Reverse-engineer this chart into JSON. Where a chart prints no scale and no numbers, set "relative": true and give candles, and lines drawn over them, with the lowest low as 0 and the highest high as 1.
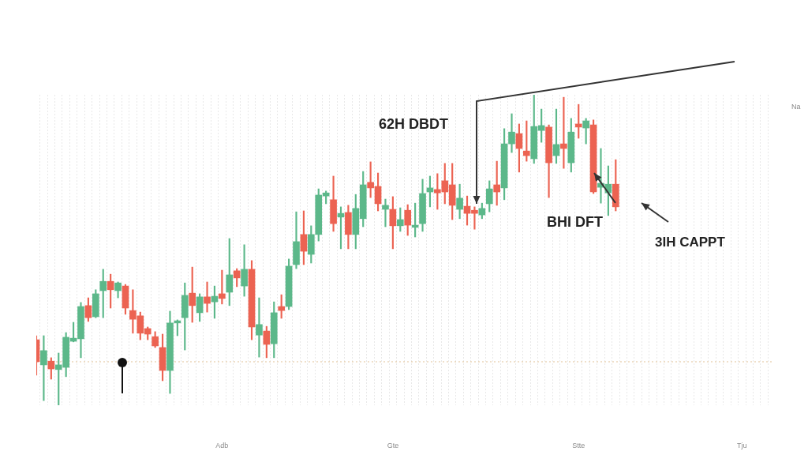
{
  "chart_data": {
    "type": "candlestick",
    "relative": true,
    "grid": "x",
    "annotations": [
      "62H DBDT",
      {
        "text": "BHI DFT",
        "y": 0.748
      },
      "3IH CAPPT",
      "Na"
    ],
    "categories": [
      null,
      null,
      null,
      null,
      null,
      null,
      null,
      null,
      null,
      null,
      null,
      null,
      null,
      null,
      null,
      null,
      null,
      null,
      null,
      null,
      null,
      null,
      null,
      null,
      null,
      "Adb",
      null,
      null,
      null,
      null,
      null,
      null,
      null,
      null,
      null,
      null,
      null,
      null,
      null,
      null,
      null,
      null,
      null,
      null,
      null,
      null,
      null,
      null,
      "Gte",
      null,
      null,
      null,
      null,
      null,
      null,
      null,
      null,
      null,
      null,
      null,
      null,
      null,
      null,
      null,
      null,
      null,
      null,
      null,
      null,
      null,
      null,
      null,
      null,
      "Stte",
      null,
      null,
      null,
      null,
      null,
      null,
      null,
      null,
      null,
      null,
      null,
      null,
      null,
      null,
      null,
      null,
      null,
      null,
      null,
      null,
      null,
      "Tju",
      null,
      null,
      null,
      null
    ],
    "ohlc": [
      [
        0.211,
        0.224,
        0.097,
        0.14
      ],
      [
        0.13,
        0.224,
        0.015,
        0.176
      ],
      [
        0.142,
        0.153,
        0.084,
        0.117
      ],
      [
        0.115,
        0.168,
        0,
        0.13
      ],
      [
        0.122,
        0.234,
        0.092,
        0.219
      ],
      [
        0.206,
        0.267,
        0.204,
        0.216
      ],
      [
        0.214,
        0.331,
        0.153,
        0.318
      ],
      [
        0.321,
        0.346,
        0.27,
        0.282
      ],
      [
        0.285,
        0.372,
        0.282,
        0.359
      ],
      [
        0.369,
        0.438,
        0.282,
        0.399
      ],
      [
        0.399,
        0.422,
        0.313,
        0.372
      ],
      [
        0.369,
        0.397,
        0.346,
        0.394
      ],
      [
        0.384,
        0.389,
        0.293,
        0.313
      ],
      [
        0.305,
        0.372,
        0.232,
        0.277
      ],
      [
        0.288,
        0.3,
        0.211,
        0.232
      ],
      [
        0.247,
        0.252,
        0.211,
        0.229
      ],
      [
        0.221,
        0.237,
        0.186,
        0.191
      ],
      [
        0.186,
        0.229,
        0.079,
        0.112
      ],
      [
        0.112,
        0.303,
        0.038,
        0.265
      ],
      [
        0.265,
        0.275,
        0.224,
        0.272
      ],
      [
        0.282,
        0.394,
        0.178,
        0.354
      ],
      [
        0.361,
        0.445,
        0.267,
        0.321
      ],
      [
        0.298,
        0.359,
        0.27,
        0.349
      ],
      [
        0.349,
        0.397,
        0.3,
        0.328
      ],
      [
        0.333,
        0.384,
        0.28,
        0.351
      ],
      [
        0.359,
        0.435,
        0.326,
        0.344
      ],
      [
        0.364,
        0.537,
        0.321,
        0.42
      ],
      [
        0.433,
        0.44,
        0.382,
        0.41
      ],
      [
        0.384,
        0.517,
        0.351,
        0.438
      ],
      [
        0.438,
        0.466,
        0.211,
        0.252
      ],
      [
        0.226,
        0.346,
        0.155,
        0.26
      ],
      [
        0.239,
        0.254,
        0.153,
        0.196
      ],
      [
        0.198,
        0.333,
        0.153,
        0.298
      ],
      [
        0.318,
        0.356,
        0.28,
        0.305
      ],
      [
        0.318,
        0.471,
        0.308,
        0.448
      ],
      [
        0.453,
        0.623,
        0.44,
        0.527
      ],
      [
        0.55,
        0.626,
        0.453,
        0.496
      ],
      [
        0.486,
        0.578,
        0.458,
        0.55
      ],
      [
        0.55,
        0.697,
        0.529,
        0.677
      ],
      [
        0.674,
        0.69,
        0.649,
        0.684
      ],
      [
        0.662,
        0.738,
        0.56,
        0.585
      ],
      [
        0.606,
        0.639,
        0.504,
        0.618
      ],
      [
        0.621,
        0.644,
        0.504,
        0.55
      ],
      [
        0.55,
        0.679,
        0.504,
        0.634
      ],
      [
        0.601,
        0.753,
        0.575,
        0.71
      ],
      [
        0.718,
        0.784,
        0.669,
        0.7
      ],
      [
        0.705,
        0.748,
        0.626,
        0.649
      ],
      [
        0.631,
        0.664,
        0.575,
        0.644
      ],
      [
        0.631,
        0.672,
        0.504,
        0.578
      ],
      [
        0.578,
        0.636,
        0.56,
        0.598
      ],
      [
        0.628,
        0.646,
        0.547,
        0.58
      ],
      [
        0.573,
        0.651,
        0.542,
        0.58
      ],
      [
        0.585,
        0.728,
        0.56,
        0.682
      ],
      [
        0.687,
        0.738,
        0.639,
        0.7
      ],
      [
        0.695,
        0.746,
        0.631,
        0.684
      ],
      [
        0.723,
        0.779,
        0.649,
        0.687
      ],
      [
        0.71,
        0.779,
        0.598,
        0.644
      ],
      [
        0.631,
        0.712,
        0.601,
        0.667
      ],
      [
        0.641,
        0.674,
        0.58,
        0.618
      ],
      [
        0.628,
        0.639,
        0.567,
        0.618
      ],
      [
        0.613,
        0.651,
        0.601,
        0.634
      ],
      [
        0.649,
        0.723,
        0.623,
        0.697
      ],
      [
        0.71,
        0.786,
        0.644,
        0.687
      ],
      [
        0.7,
        0.891,
        0.662,
        0.842
      ],
      [
        0.842,
        0.939,
        0.814,
        0.88
      ],
      [
        0.875,
        0.906,
        0.751,
        0.827
      ],
      [
        0.819,
        0.916,
        0.786,
        0.804
      ],
      [
        0.794,
        1,
        0.779,
        0.898
      ],
      [
        0.885,
        0.954,
        0.847,
        0.901
      ],
      [
        0.896,
        0.903,
        0.669,
        0.781
      ],
      [
        0.804,
        0.954,
        0.779,
        0.84
      ],
      [
        0.842,
        0.992,
        0.763,
        0.827
      ],
      [
        0.781,
        0.924,
        0.751,
        0.88
      ],
      [
        0.906,
        0.969,
        0.86,
        0.896
      ],
      [
        0.893,
        0.924,
        0.842,
        0.916
      ],
      [
        0.903,
        0.919,
        0.682,
        0.687
      ],
      [
        0.702,
        0.827,
        0.651,
        0.715
      ],
      [
        0.684,
        0.771,
        0.611,
        0.712
      ],
      [
        0.712,
        0.791,
        0.626,
        0.639
      ],
      null,
      null,
      null,
      null,
      null,
      null,
      null,
      null,
      null,
      null,
      null,
      null,
      null,
      null,
      null,
      null,
      null,
      null,
      null,
      null,
      null
    ],
    "colors": [
      "#ec6352",
      "#5cb88a",
      "#ec6352",
      "#5cb88a",
      "#5cb88a",
      "#5cb88a",
      "#5cb88a",
      "#ec6352",
      "#5cb88a",
      "#5cb88a",
      "#ec6352",
      "#5cb88a",
      "#ec6352",
      "#ec6352",
      "#ec6352",
      "#ec6352",
      "#ec6352",
      "#ec6352",
      "#5cb88a",
      "#5cb88a",
      "#5cb88a",
      "#ec6352",
      "#5cb88a",
      "#ec6352",
      "#5cb88a",
      "#ec6352",
      "#5cb88a",
      "#ec6352",
      "#5cb88a",
      "#ec6352",
      "#5cb88a",
      "#ec6352",
      "#5cb88a",
      "#ec6352",
      "#5cb88a",
      "#5cb88a",
      "#ec6352",
      "#5cb88a",
      "#5cb88a",
      "#5cb88a",
      "#ec6352",
      "#5cb88a",
      "#ec6352",
      "#5cb88a",
      "#5cb88a",
      "#ec6352",
      "#ec6352",
      "#5cb88a",
      "#ec6352",
      "#5cb88a",
      "#ec6352",
      "#5cb88a",
      "#5cb88a",
      "#5cb88a",
      "#ec6352",
      "#ec6352",
      "#ec6352",
      "#5cb88a",
      "#ec6352",
      "#ec6352",
      "#5cb88a",
      "#5cb88a",
      "#ec6352",
      "#5cb88a",
      "#5cb88a",
      "#ec6352",
      "#ec6352",
      "#5cb88a",
      "#5cb88a",
      "#ec6352",
      "#5cb88a",
      "#ec6352",
      "#5cb88a",
      "#ec6352",
      "#5cb88a",
      "#ec6352",
      "#5cb88a",
      "#5cb88a",
      "#ec6352",
      null,
      null,
      null,
      null,
      null,
      null,
      null,
      null,
      null,
      null,
      null,
      null,
      null,
      null,
      null,
      null,
      null,
      null,
      null,
      null,
      null
    ],
    "ref_lines": [
      {
        "axis": "y",
        "value": 0.14,
        "color": "#e2c49a",
        "line_style": "dotted"
      }
    ]
  }
}
